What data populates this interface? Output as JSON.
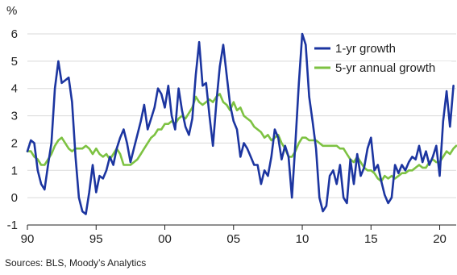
{
  "chart_data": {
    "type": "line",
    "unit_label": "%",
    "source": "Sources: BLS, Moody’s Analytics",
    "ylim": [
      -1,
      6
    ],
    "yticks": [
      -1,
      0,
      1,
      2,
      3,
      4,
      5,
      6
    ],
    "xlim": [
      1990,
      2021.2
    ],
    "xticks": [
      {
        "value": 1990,
        "label": "90"
      },
      {
        "value": 1995,
        "label": "95"
      },
      {
        "value": 2000,
        "label": "00"
      },
      {
        "value": 2005,
        "label": "05"
      },
      {
        "value": 2010,
        "label": "10"
      },
      {
        "value": 2015,
        "label": "15"
      },
      {
        "value": 2020,
        "label": "20"
      }
    ],
    "grid": "horizontal",
    "legend_position": "top-right",
    "series": [
      {
        "name": "1-yr growth",
        "color": "#1c35a0",
        "points": [
          [
            1990.0,
            1.7
          ],
          [
            1990.25,
            2.1
          ],
          [
            1990.5,
            2.0
          ],
          [
            1990.75,
            1.0
          ],
          [
            1991.0,
            0.5
          ],
          [
            1991.25,
            0.3
          ],
          [
            1991.5,
            1.2
          ],
          [
            1991.75,
            2.0
          ],
          [
            1992.0,
            4.0
          ],
          [
            1992.25,
            5.0
          ],
          [
            1992.5,
            4.2
          ],
          [
            1992.75,
            4.3
          ],
          [
            1993.0,
            4.4
          ],
          [
            1993.25,
            3.5
          ],
          [
            1993.5,
            1.5
          ],
          [
            1993.75,
            0.0
          ],
          [
            1994.0,
            -0.5
          ],
          [
            1994.25,
            -0.6
          ],
          [
            1994.5,
            0.2
          ],
          [
            1994.75,
            1.2
          ],
          [
            1995.0,
            0.2
          ],
          [
            1995.25,
            0.8
          ],
          [
            1995.5,
            0.7
          ],
          [
            1995.75,
            1.0
          ],
          [
            1996.0,
            1.5
          ],
          [
            1996.25,
            1.2
          ],
          [
            1996.5,
            1.8
          ],
          [
            1996.75,
            2.2
          ],
          [
            1997.0,
            2.5
          ],
          [
            1997.25,
            2.0
          ],
          [
            1997.5,
            1.3
          ],
          [
            1997.75,
            1.8
          ],
          [
            1998.0,
            2.3
          ],
          [
            1998.25,
            2.8
          ],
          [
            1998.5,
            3.4
          ],
          [
            1998.75,
            2.5
          ],
          [
            1999.0,
            2.9
          ],
          [
            1999.25,
            3.3
          ],
          [
            1999.5,
            4.0
          ],
          [
            1999.75,
            3.8
          ],
          [
            2000.0,
            3.3
          ],
          [
            2000.25,
            4.1
          ],
          [
            2000.5,
            3.0
          ],
          [
            2000.75,
            2.5
          ],
          [
            2001.0,
            4.0
          ],
          [
            2001.25,
            3.2
          ],
          [
            2001.5,
            2.6
          ],
          [
            2001.75,
            2.3
          ],
          [
            2002.0,
            2.9
          ],
          [
            2002.25,
            4.5
          ],
          [
            2002.5,
            5.7
          ],
          [
            2002.75,
            4.1
          ],
          [
            2003.0,
            4.2
          ],
          [
            2003.25,
            3.0
          ],
          [
            2003.5,
            1.9
          ],
          [
            2003.75,
            3.5
          ],
          [
            2004.0,
            4.8
          ],
          [
            2004.25,
            5.6
          ],
          [
            2004.5,
            4.5
          ],
          [
            2004.75,
            3.4
          ],
          [
            2005.0,
            2.8
          ],
          [
            2005.25,
            2.5
          ],
          [
            2005.5,
            1.5
          ],
          [
            2005.75,
            2.0
          ],
          [
            2006.0,
            1.8
          ],
          [
            2006.25,
            1.5
          ],
          [
            2006.5,
            1.2
          ],
          [
            2006.75,
            1.2
          ],
          [
            2007.0,
            0.5
          ],
          [
            2007.25,
            1.0
          ],
          [
            2007.5,
            0.8
          ],
          [
            2007.75,
            1.5
          ],
          [
            2008.0,
            2.5
          ],
          [
            2008.25,
            2.2
          ],
          [
            2008.5,
            1.4
          ],
          [
            2008.75,
            1.9
          ],
          [
            2009.0,
            1.5
          ],
          [
            2009.25,
            0.0
          ],
          [
            2009.5,
            2.0
          ],
          [
            2009.75,
            4.2
          ],
          [
            2010.0,
            6.0
          ],
          [
            2010.25,
            5.6
          ],
          [
            2010.5,
            3.7
          ],
          [
            2010.75,
            2.8
          ],
          [
            2011.0,
            1.8
          ],
          [
            2011.25,
            0.0
          ],
          [
            2011.5,
            -0.5
          ],
          [
            2011.75,
            -0.3
          ],
          [
            2012.0,
            0.8
          ],
          [
            2012.25,
            1.0
          ],
          [
            2012.5,
            0.5
          ],
          [
            2012.75,
            1.2
          ],
          [
            2013.0,
            0.0
          ],
          [
            2013.25,
            -0.2
          ],
          [
            2013.5,
            1.4
          ],
          [
            2013.75,
            0.5
          ],
          [
            2014.0,
            1.6
          ],
          [
            2014.25,
            0.8
          ],
          [
            2014.5,
            1.1
          ],
          [
            2014.75,
            1.8
          ],
          [
            2015.0,
            2.2
          ],
          [
            2015.25,
            1.0
          ],
          [
            2015.5,
            1.2
          ],
          [
            2015.75,
            0.6
          ],
          [
            2016.0,
            0.1
          ],
          [
            2016.25,
            -0.2
          ],
          [
            2016.5,
            0.0
          ],
          [
            2016.75,
            1.2
          ],
          [
            2017.0,
            0.9
          ],
          [
            2017.25,
            1.2
          ],
          [
            2017.5,
            1.0
          ],
          [
            2017.75,
            1.3
          ],
          [
            2018.0,
            1.5
          ],
          [
            2018.25,
            1.4
          ],
          [
            2018.5,
            1.9
          ],
          [
            2018.75,
            1.3
          ],
          [
            2019.0,
            1.7
          ],
          [
            2019.25,
            1.2
          ],
          [
            2019.5,
            1.5
          ],
          [
            2019.75,
            1.9
          ],
          [
            2020.0,
            0.8
          ],
          [
            2020.25,
            2.8
          ],
          [
            2020.5,
            3.9
          ],
          [
            2020.75,
            2.6
          ],
          [
            2021.0,
            4.1
          ]
        ]
      },
      {
        "name": "5-yr annual growth",
        "color": "#7dc242",
        "points": [
          [
            1990.0,
            1.7
          ],
          [
            1990.25,
            1.7
          ],
          [
            1990.5,
            1.5
          ],
          [
            1990.75,
            1.4
          ],
          [
            1991.0,
            1.2
          ],
          [
            1991.25,
            1.2
          ],
          [
            1991.5,
            1.4
          ],
          [
            1991.75,
            1.6
          ],
          [
            1992.0,
            1.9
          ],
          [
            1992.25,
            2.1
          ],
          [
            1992.5,
            2.2
          ],
          [
            1992.75,
            2.0
          ],
          [
            1993.0,
            1.8
          ],
          [
            1993.25,
            1.7
          ],
          [
            1993.5,
            1.8
          ],
          [
            1993.75,
            1.8
          ],
          [
            1994.0,
            1.8
          ],
          [
            1994.25,
            1.9
          ],
          [
            1994.5,
            1.8
          ],
          [
            1994.75,
            1.6
          ],
          [
            1995.0,
            1.8
          ],
          [
            1995.25,
            1.6
          ],
          [
            1995.5,
            1.5
          ],
          [
            1995.75,
            1.6
          ],
          [
            1996.0,
            1.4
          ],
          [
            1996.25,
            1.6
          ],
          [
            1996.5,
            1.8
          ],
          [
            1996.75,
            1.6
          ],
          [
            1997.0,
            1.2
          ],
          [
            1997.25,
            1.2
          ],
          [
            1997.5,
            1.2
          ],
          [
            1997.75,
            1.3
          ],
          [
            1998.0,
            1.4
          ],
          [
            1998.25,
            1.6
          ],
          [
            1998.5,
            1.8
          ],
          [
            1998.75,
            2.0
          ],
          [
            1999.0,
            2.2
          ],
          [
            1999.25,
            2.3
          ],
          [
            1999.5,
            2.5
          ],
          [
            1999.75,
            2.5
          ],
          [
            2000.0,
            2.7
          ],
          [
            2000.25,
            2.7
          ],
          [
            2000.5,
            2.8
          ],
          [
            2000.75,
            2.7
          ],
          [
            2001.0,
            2.9
          ],
          [
            2001.25,
            3.0
          ],
          [
            2001.5,
            2.9
          ],
          [
            2001.75,
            3.1
          ],
          [
            2002.0,
            3.3
          ],
          [
            2002.25,
            3.7
          ],
          [
            2002.5,
            3.5
          ],
          [
            2002.75,
            3.4
          ],
          [
            2003.0,
            3.5
          ],
          [
            2003.25,
            3.6
          ],
          [
            2003.5,
            3.5
          ],
          [
            2003.75,
            3.7
          ],
          [
            2004.0,
            3.8
          ],
          [
            2004.25,
            3.5
          ],
          [
            2004.5,
            3.4
          ],
          [
            2004.75,
            3.2
          ],
          [
            2005.0,
            3.5
          ],
          [
            2005.25,
            3.2
          ],
          [
            2005.5,
            3.3
          ],
          [
            2005.75,
            3.0
          ],
          [
            2006.0,
            2.9
          ],
          [
            2006.25,
            2.8
          ],
          [
            2006.5,
            2.6
          ],
          [
            2006.75,
            2.5
          ],
          [
            2007.0,
            2.4
          ],
          [
            2007.25,
            2.2
          ],
          [
            2007.5,
            2.3
          ],
          [
            2007.75,
            2.1
          ],
          [
            2008.0,
            2.2
          ],
          [
            2008.25,
            2.3
          ],
          [
            2008.5,
            2.0
          ],
          [
            2008.75,
            1.8
          ],
          [
            2009.0,
            1.5
          ],
          [
            2009.25,
            1.5
          ],
          [
            2009.5,
            1.7
          ],
          [
            2009.75,
            2.0
          ],
          [
            2010.0,
            2.2
          ],
          [
            2010.25,
            2.2
          ],
          [
            2010.5,
            2.1
          ],
          [
            2010.75,
            2.1
          ],
          [
            2011.0,
            2.1
          ],
          [
            2011.25,
            2.0
          ],
          [
            2011.5,
            1.9
          ],
          [
            2011.75,
            1.9
          ],
          [
            2012.0,
            1.9
          ],
          [
            2012.25,
            1.9
          ],
          [
            2012.5,
            1.9
          ],
          [
            2012.75,
            1.8
          ],
          [
            2013.0,
            1.8
          ],
          [
            2013.25,
            1.6
          ],
          [
            2013.5,
            1.4
          ],
          [
            2013.75,
            1.3
          ],
          [
            2014.0,
            1.5
          ],
          [
            2014.25,
            1.3
          ],
          [
            2014.5,
            1.1
          ],
          [
            2014.75,
            1.0
          ],
          [
            2015.0,
            1.0
          ],
          [
            2015.25,
            0.9
          ],
          [
            2015.5,
            0.7
          ],
          [
            2015.75,
            0.6
          ],
          [
            2016.0,
            0.8
          ],
          [
            2016.25,
            0.7
          ],
          [
            2016.5,
            0.8
          ],
          [
            2016.75,
            0.7
          ],
          [
            2017.0,
            0.8
          ],
          [
            2017.25,
            0.9
          ],
          [
            2017.5,
            0.9
          ],
          [
            2017.75,
            1.0
          ],
          [
            2018.0,
            1.0
          ],
          [
            2018.25,
            1.1
          ],
          [
            2018.5,
            1.2
          ],
          [
            2018.75,
            1.1
          ],
          [
            2019.0,
            1.1
          ],
          [
            2019.25,
            1.3
          ],
          [
            2019.5,
            1.4
          ],
          [
            2019.75,
            1.3
          ],
          [
            2020.0,
            1.3
          ],
          [
            2020.25,
            1.5
          ],
          [
            2020.5,
            1.7
          ],
          [
            2020.75,
            1.6
          ],
          [
            2021.0,
            1.8
          ],
          [
            2021.2,
            1.9
          ]
        ]
      }
    ]
  }
}
